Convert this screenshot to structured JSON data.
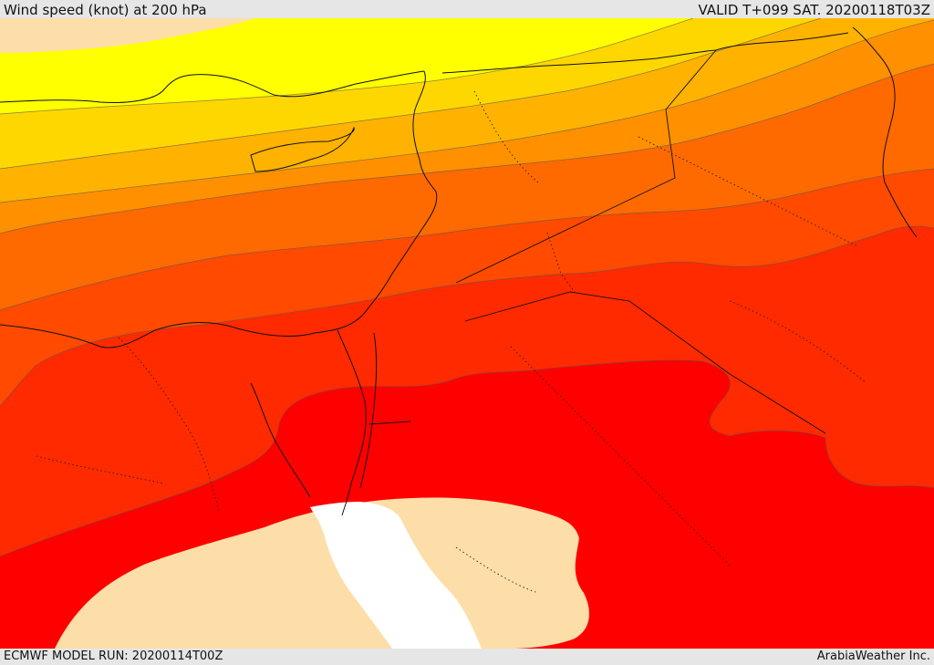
{
  "header": {
    "title": "Wind speed (knot) at 200 hPa",
    "valid": "VALID T+099 SAT. 20200118T03Z"
  },
  "footer": {
    "model_run": "ECMWF MODEL RUN: 20200114T00Z",
    "credit": "ArabiaWeather Inc."
  },
  "map": {
    "field": "wind speed at 200 hPa",
    "colors": {
      "yellow": "#ffff00",
      "gold": "#ffd700",
      "light_orange": "#ffb300",
      "orange": "#ff9000",
      "dark_orange": "#ff6a00",
      "orange_red": "#ff4a00",
      "red_orange": "#ff2a00",
      "red": "#ff0000",
      "land_low": "#fddea8",
      "sea_low": "#ffffff"
    }
  }
}
